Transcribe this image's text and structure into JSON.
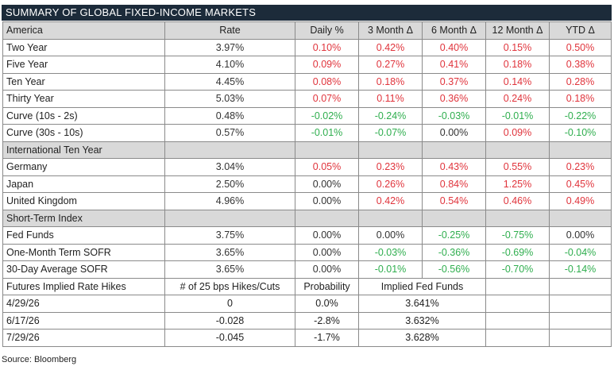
{
  "title": "SUMMARY OF GLOBAL FIXED-INCOME MARKETS",
  "header": [
    "America",
    "Rate",
    "Daily %",
    "3 Month Δ",
    "6 Month Δ",
    "12 Month Δ",
    "YTD Δ"
  ],
  "america": [
    {
      "name": "Two Year",
      "rate": "3.97%",
      "vals": [
        "0.10%",
        "0.42%",
        "0.40%",
        "0.15%",
        "0.50%"
      ]
    },
    {
      "name": "Five Year",
      "rate": "4.10%",
      "vals": [
        "0.09%",
        "0.27%",
        "0.41%",
        "0.18%",
        "0.38%"
      ]
    },
    {
      "name": "Ten Year",
      "rate": "4.45%",
      "vals": [
        "0.08%",
        "0.18%",
        "0.37%",
        "0.14%",
        "0.28%"
      ]
    },
    {
      "name": "Thirty Year",
      "rate": "5.03%",
      "vals": [
        "0.07%",
        "0.11%",
        "0.36%",
        "0.24%",
        "0.18%"
      ]
    },
    {
      "name": "Curve (10s - 2s)",
      "rate": "0.48%",
      "vals": [
        "-0.02%",
        "-0.24%",
        "-0.03%",
        "-0.01%",
        "-0.22%"
      ]
    },
    {
      "name": "Curve (30s - 10s)",
      "rate": "0.57%",
      "vals": [
        "-0.01%",
        "-0.07%",
        "0.00%",
        "0.09%",
        "-0.10%"
      ]
    }
  ],
  "intl_header": "International Ten Year",
  "international": [
    {
      "name": "Germany",
      "rate": "3.04%",
      "vals": [
        "0.05%",
        "0.23%",
        "0.43%",
        "0.55%",
        "0.23%"
      ]
    },
    {
      "name": "Japan",
      "rate": "2.50%",
      "vals": [
        "0.00%",
        "0.26%",
        "0.84%",
        "1.25%",
        "0.45%"
      ]
    },
    {
      "name": "United Kingdom",
      "rate": "4.96%",
      "vals": [
        "0.00%",
        "0.42%",
        "0.54%",
        "0.46%",
        "0.49%"
      ]
    }
  ],
  "short_header": "Short-Term Index",
  "short_term": [
    {
      "name": "Fed Funds",
      "rate": "3.75%",
      "vals": [
        "0.00%",
        "0.00%",
        "-0.25%",
        "-0.75%",
        "0.00%"
      ]
    },
    {
      "name": "One-Month Term SOFR",
      "rate": "3.65%",
      "vals": [
        "0.00%",
        "-0.03%",
        "-0.36%",
        "-0.69%",
        "-0.04%"
      ]
    },
    {
      "name": "30-Day Average SOFR",
      "rate": "3.65%",
      "vals": [
        "0.00%",
        "-0.01%",
        "-0.56%",
        "-0.70%",
        "-0.14%"
      ]
    }
  ],
  "futures_header": [
    "Futures Implied Rate Hikes",
    "# of 25 bps Hikes/Cuts",
    "Probability",
    "Implied Fed Funds"
  ],
  "futures": [
    {
      "date": "4/29/26",
      "hikes": "0",
      "prob": "0.0%",
      "implied": "3.641%"
    },
    {
      "date": "6/17/26",
      "hikes": "-0.028",
      "prob": "-2.8%",
      "implied": "3.632%"
    },
    {
      "date": "7/29/26",
      "hikes": "-0.045",
      "prob": "-1.7%",
      "implied": "3.628%"
    }
  ],
  "source": "Source: Bloomberg",
  "colors": {
    "positive": "#e0343c",
    "negative": "#2fae4e",
    "neutral": "#333333",
    "header_bg": "#d9d9d9",
    "title_bg": "#1c2b3a"
  }
}
